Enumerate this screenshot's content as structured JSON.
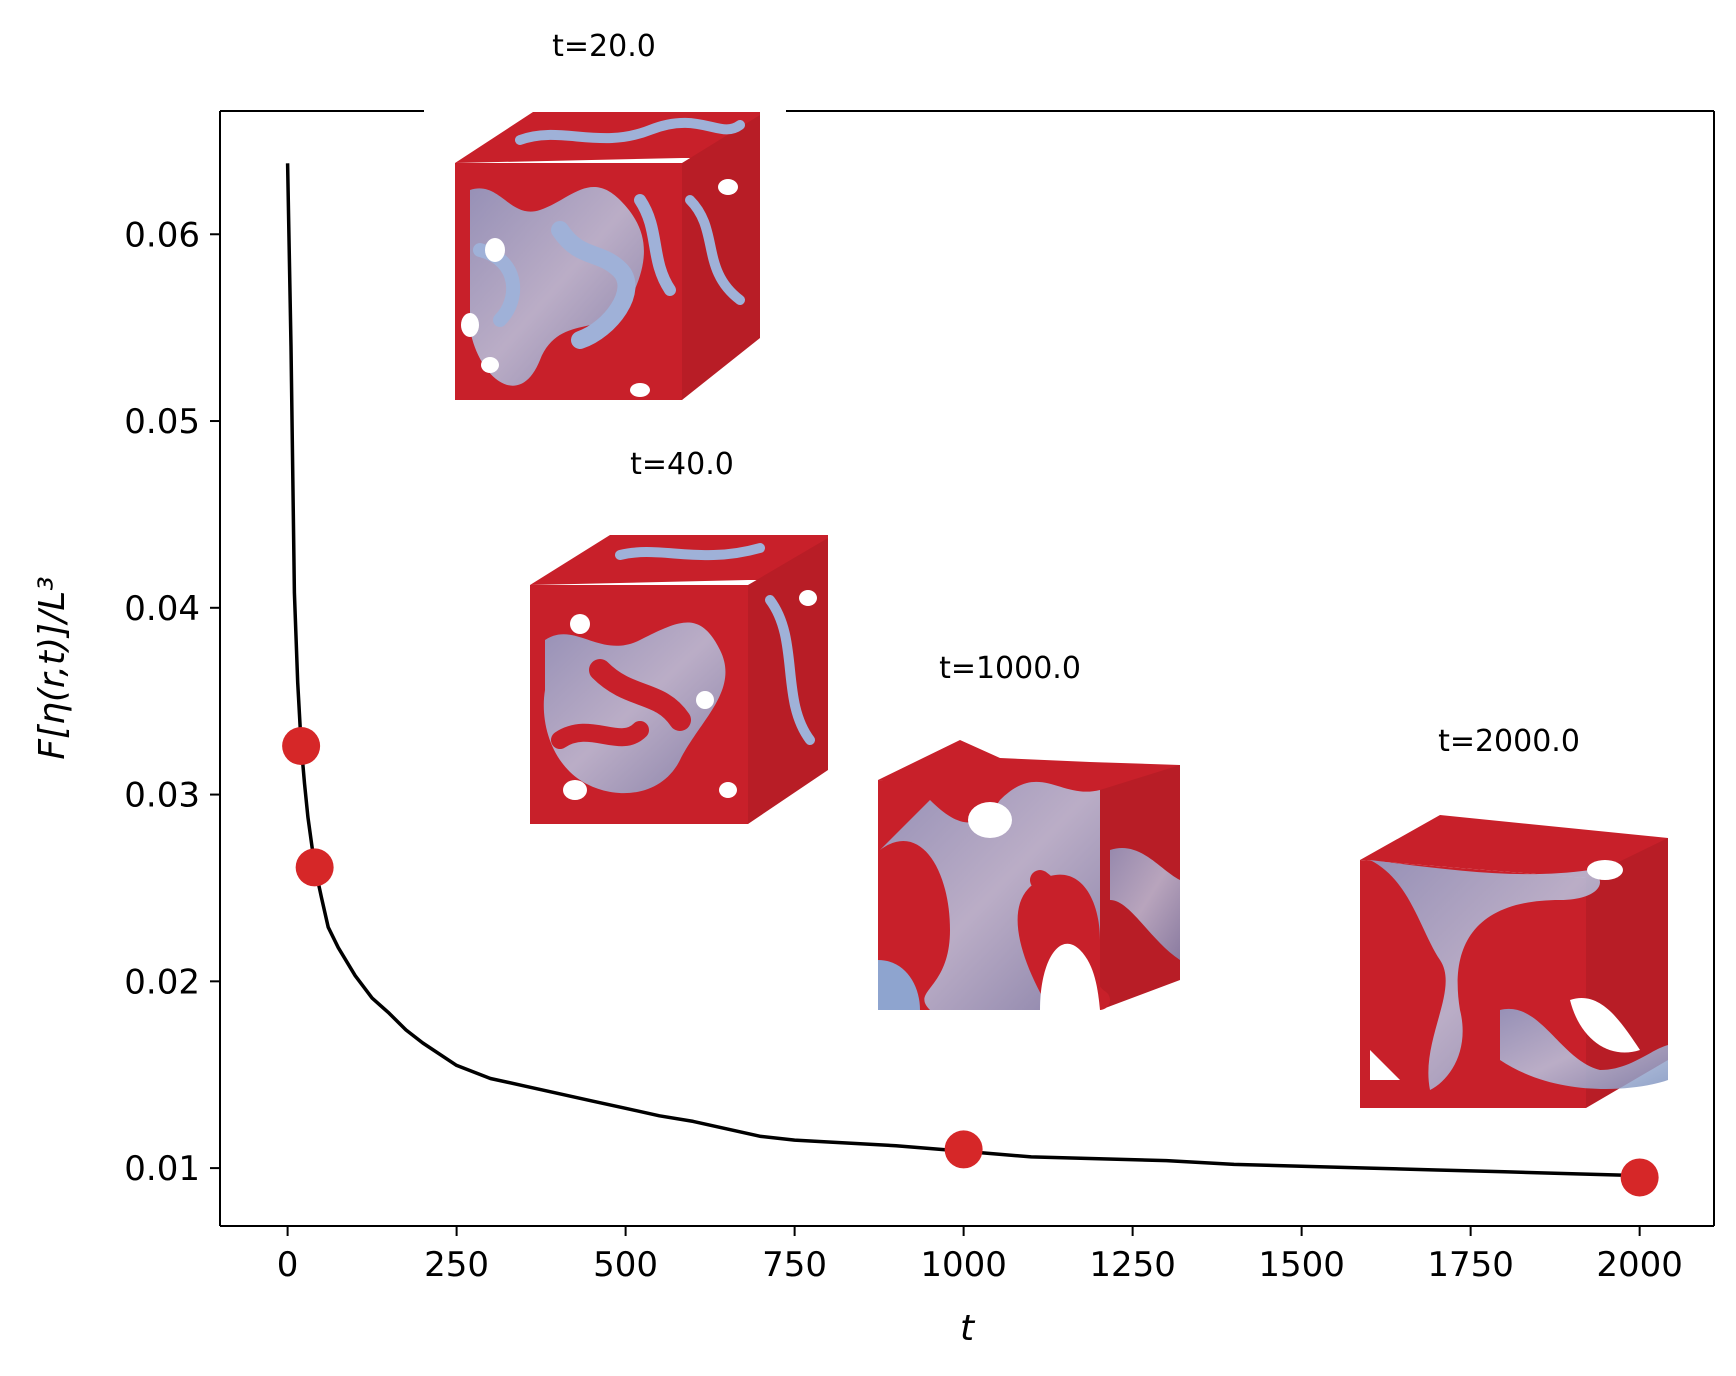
{
  "chart_data": {
    "type": "line",
    "xlabel": "t",
    "ylabel": "F[η(r,t)]/L³",
    "xlim": [
      -100,
      2110
    ],
    "ylim": [
      0.0069,
      0.0666
    ],
    "xticks": [
      0,
      250,
      500,
      750,
      1000,
      1250,
      1500,
      1750,
      2000
    ],
    "xtick_labels": [
      "0",
      "250",
      "500",
      "750",
      "1000",
      "1250",
      "1500",
      "1750",
      "2000"
    ],
    "yticks": [
      0.01,
      0.02,
      0.03,
      0.04,
      0.05,
      0.06
    ],
    "ytick_labels": [
      "0.01",
      "0.02",
      "0.03",
      "0.04",
      "0.05",
      "0.06"
    ],
    "grid": false,
    "series": [
      {
        "color": "#000000",
        "x": [
          0,
          5,
          10,
          15,
          20,
          25,
          30,
          40,
          50,
          60,
          75,
          100,
          125,
          150,
          175,
          200,
          250,
          300,
          350,
          400,
          450,
          500,
          550,
          600,
          650,
          700,
          750,
          800,
          900,
          1000,
          1100,
          1200,
          1300,
          1400,
          1500,
          1600,
          1700,
          1800,
          1900,
          2000
        ],
        "y": [
          0.0638,
          0.054,
          0.0408,
          0.036,
          0.0327,
          0.0306,
          0.0288,
          0.0262,
          0.0245,
          0.0229,
          0.0218,
          0.0203,
          0.0191,
          0.0183,
          0.0174,
          0.0167,
          0.0155,
          0.0148,
          0.0144,
          0.014,
          0.0136,
          0.0132,
          0.0128,
          0.0125,
          0.0121,
          0.0117,
          0.0115,
          0.0114,
          0.0112,
          0.0109,
          0.0106,
          0.0105,
          0.0104,
          0.0102,
          0.0101,
          0.01,
          0.0099,
          0.0098,
          0.0097,
          0.0096
        ]
      }
    ],
    "markers": {
      "color": "#d62728",
      "x": [
        20,
        40,
        1000,
        2000
      ],
      "y": [
        0.0326,
        0.0261,
        0.011,
        0.0095
      ]
    },
    "insets": [
      {
        "title": "t=20.0",
        "style": "fine"
      },
      {
        "title": "t=40.0",
        "style": "fine"
      },
      {
        "title": "t=1000.0",
        "style": "coarse"
      },
      {
        "title": "t=2000.0",
        "style": "coarsest"
      }
    ]
  }
}
